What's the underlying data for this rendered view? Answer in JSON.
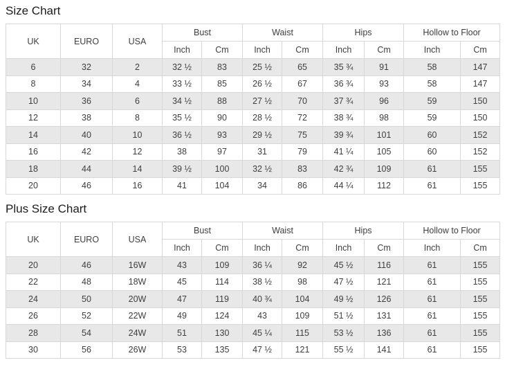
{
  "colors": {
    "row_alternate": "#e8e8e8",
    "row_plain": "#ffffff",
    "table_border": "#d7d7d7",
    "text": "#3e3e3e",
    "title_text": "#1c1c1c"
  },
  "tables": [
    {
      "title": "Size Chart",
      "plain_columns": [
        "UK",
        "EURO",
        "USA"
      ],
      "grouped_columns": [
        "Bust",
        "Waist",
        "Hips",
        "Hollow to Floor"
      ],
      "unit_columns": [
        "Inch",
        "Cm"
      ],
      "rows": [
        [
          "6",
          "32",
          "2",
          "32 ½",
          "83",
          "25 ½",
          "65",
          "35 ¾",
          "91",
          "58",
          "147"
        ],
        [
          "8",
          "34",
          "4",
          "33 ½",
          "85",
          "26 ½",
          "67",
          "36 ¾",
          "93",
          "58",
          "147"
        ],
        [
          "10",
          "36",
          "6",
          "34 ½",
          "88",
          "27 ½",
          "70",
          "37 ¾",
          "96",
          "59",
          "150"
        ],
        [
          "12",
          "38",
          "8",
          "35 ½",
          "90",
          "28 ½",
          "72",
          "38 ¾",
          "98",
          "59",
          "150"
        ],
        [
          "14",
          "40",
          "10",
          "36 ½",
          "93",
          "29 ½",
          "75",
          "39 ¾",
          "101",
          "60",
          "152"
        ],
        [
          "16",
          "42",
          "12",
          "38",
          "97",
          "31",
          "79",
          "41 ¼",
          "105",
          "60",
          "152"
        ],
        [
          "18",
          "44",
          "14",
          "39 ½",
          "100",
          "32 ½",
          "83",
          "42 ¾",
          "109",
          "61",
          "155"
        ],
        [
          "20",
          "46",
          "16",
          "41",
          "104",
          "34",
          "86",
          "44 ¼",
          "112",
          "61",
          "155"
        ]
      ]
    },
    {
      "title": "Plus Size Chart",
      "plain_columns": [
        "UK",
        "EURO",
        "USA"
      ],
      "grouped_columns": [
        "Bust",
        "Waist",
        "Hips",
        "Hollow to Floor"
      ],
      "unit_columns": [
        "Inch",
        "Cm"
      ],
      "rows": [
        [
          "20",
          "46",
          "16W",
          "43",
          "109",
          "36 ¼",
          "92",
          "45 ½",
          "116",
          "61",
          "155"
        ],
        [
          "22",
          "48",
          "18W",
          "45",
          "114",
          "38 ½",
          "98",
          "47 ½",
          "121",
          "61",
          "155"
        ],
        [
          "24",
          "50",
          "20W",
          "47",
          "119",
          "40 ¾",
          "104",
          "49 ½",
          "126",
          "61",
          "155"
        ],
        [
          "26",
          "52",
          "22W",
          "49",
          "124",
          "43",
          "109",
          "51 ½",
          "131",
          "61",
          "155"
        ],
        [
          "28",
          "54",
          "24W",
          "51",
          "130",
          "45 ¼",
          "115",
          "53 ½",
          "136",
          "61",
          "155"
        ],
        [
          "30",
          "56",
          "26W",
          "53",
          "135",
          "47 ½",
          "121",
          "55 ½",
          "141",
          "61",
          "155"
        ]
      ]
    }
  ]
}
